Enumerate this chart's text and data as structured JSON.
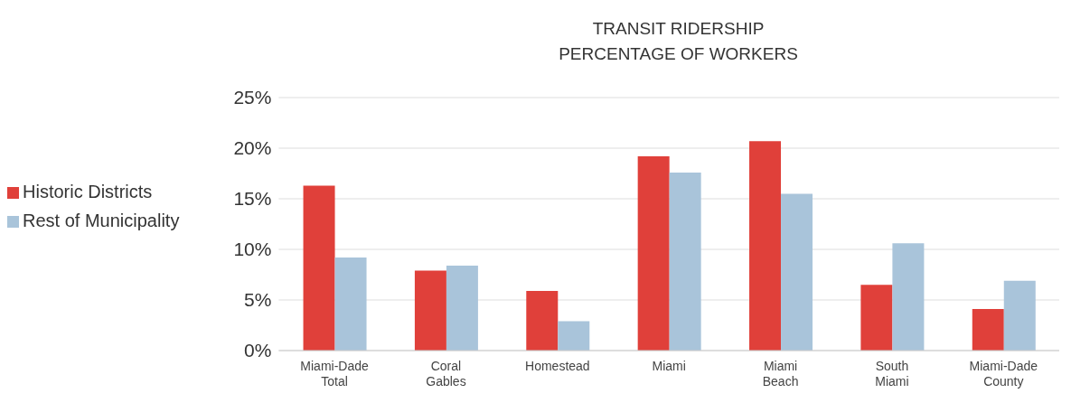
{
  "chart_data": {
    "type": "bar",
    "title": "TRANSIT RIDERSHIP",
    "subtitle": "PERCENTAGE OF WORKERS",
    "categories": [
      "Miami-Dade Total",
      "Coral Gables",
      "Homestead",
      "Miami",
      "Miami Beach",
      "South Miami",
      "Miami-Dade County"
    ],
    "series": [
      {
        "name": "Historic Districts",
        "color": "#e0403a",
        "values": [
          16.3,
          7.9,
          5.9,
          19.2,
          20.7,
          6.5,
          4.1
        ]
      },
      {
        "name": "Rest of Municipality",
        "color": "#a9c4da",
        "values": [
          9.2,
          8.4,
          2.9,
          17.6,
          15.5,
          10.6,
          6.9
        ]
      }
    ],
    "ylim": [
      0,
      25
    ],
    "yticks": [
      {
        "value": 0,
        "label": "0%"
      },
      {
        "value": 5,
        "label": "5%"
      },
      {
        "value": 10,
        "label": "10%"
      },
      {
        "value": 15,
        "label": "15%"
      },
      {
        "value": 20,
        "label": "20%"
      },
      {
        "value": 25,
        "label": "25%"
      }
    ],
    "grid": "y",
    "legend": "left"
  }
}
